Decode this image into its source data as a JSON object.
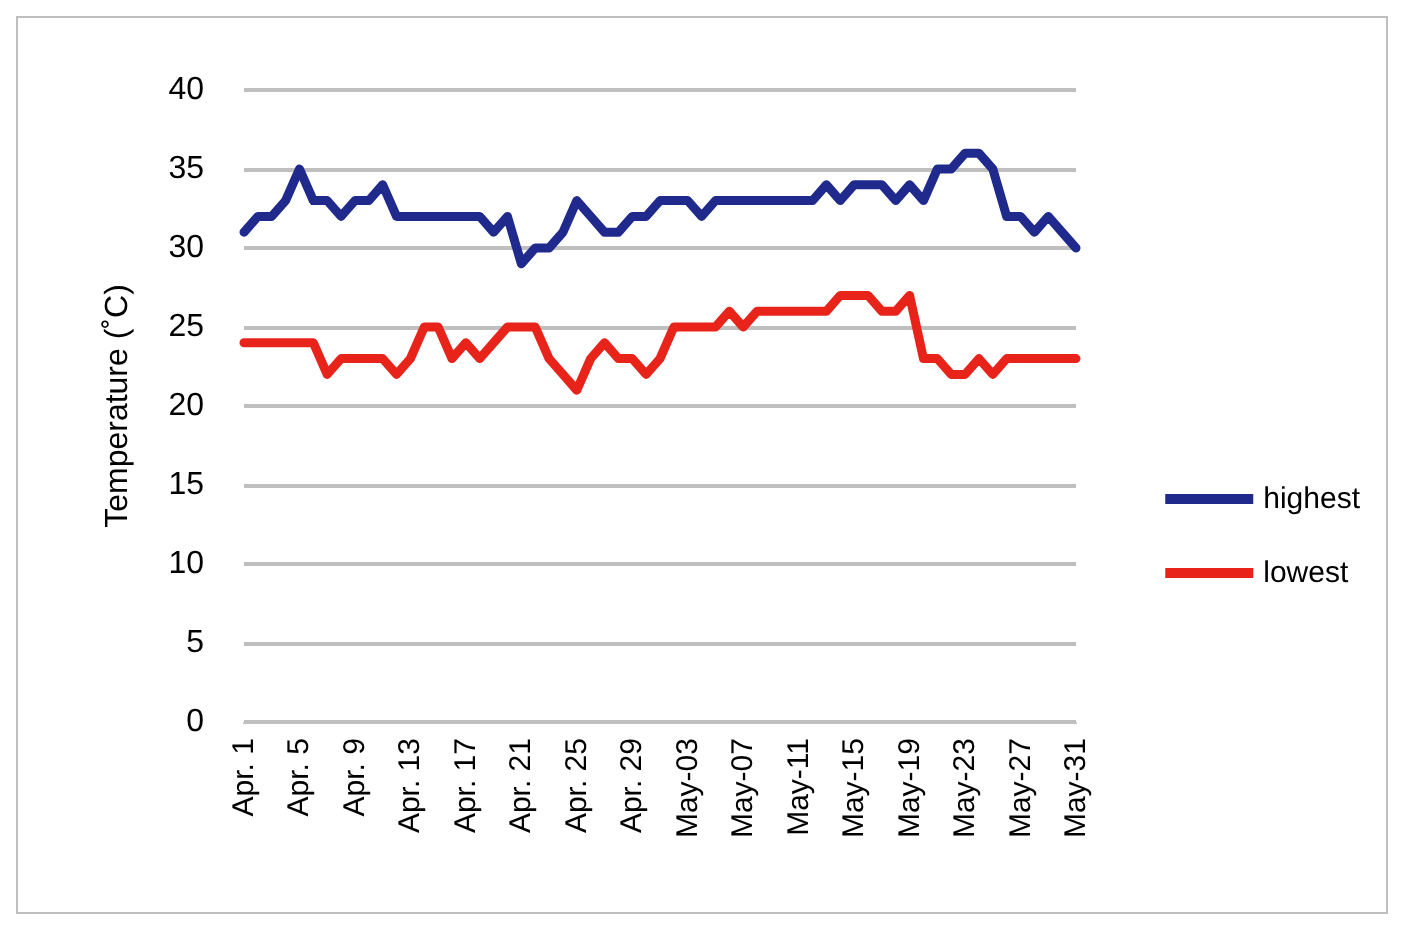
{
  "chart_data": {
    "type": "line",
    "ylabel": "Temperature (˚C)",
    "categories": [
      "Apr. 1",
      null,
      null,
      null,
      "Apr. 5",
      null,
      null,
      null,
      "Apr. 9",
      null,
      null,
      null,
      "Apr. 13",
      null,
      null,
      null,
      "Apr. 17",
      null,
      null,
      null,
      "Apr. 21",
      null,
      null,
      null,
      "Apr. 25",
      null,
      null,
      null,
      "Apr. 29",
      null,
      null,
      null,
      "May-03",
      null,
      null,
      null,
      "May-07",
      null,
      null,
      null,
      "May-11",
      null,
      null,
      null,
      "May-15",
      null,
      null,
      null,
      "May-19",
      null,
      null,
      null,
      "May-23",
      null,
      null,
      null,
      "May-27",
      null,
      null,
      null,
      "May-31"
    ],
    "series": [
      {
        "name": "highest",
        "color": "#1f2a8c",
        "values": [
          31,
          32,
          32,
          33,
          35,
          33,
          33,
          32,
          33,
          33,
          34,
          32,
          32,
          32,
          32,
          32,
          32,
          32,
          31,
          32,
          29,
          30,
          30,
          31,
          33,
          32,
          31,
          31,
          32,
          32,
          33,
          33,
          33,
          32,
          33,
          33,
          33,
          33,
          33,
          33,
          33,
          33,
          34,
          33,
          34,
          34,
          34,
          33,
          34,
          33,
          35,
          35,
          36,
          36,
          35,
          32,
          32,
          31,
          32,
          31,
          30
        ]
      },
      {
        "name": "lowest",
        "color": "#e8231a",
        "values": [
          24,
          24,
          24,
          24,
          24,
          24,
          22,
          23,
          23,
          23,
          23,
          22,
          23,
          25,
          25,
          23,
          24,
          23,
          24,
          25,
          25,
          25,
          23,
          22,
          21,
          23,
          24,
          23,
          23,
          22,
          23,
          25,
          25,
          25,
          25,
          26,
          25,
          26,
          26,
          26,
          26,
          26,
          26,
          27,
          27,
          27,
          26,
          26,
          27,
          23,
          23,
          22,
          22,
          23,
          22,
          23,
          23,
          23,
          23,
          23,
          23
        ]
      }
    ],
    "ylim": [
      0,
      40
    ],
    "yticks": [
      0,
      5,
      10,
      15,
      20,
      25,
      30,
      35,
      40
    ],
    "grid": "y",
    "legend": "right",
    "marker": "none",
    "line_style": "solid"
  }
}
